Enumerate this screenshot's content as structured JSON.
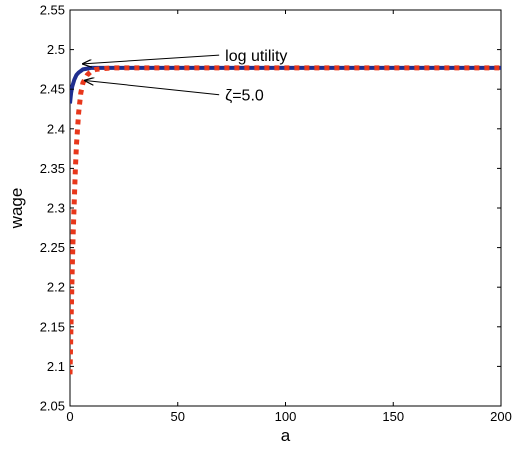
{
  "chart_data": {
    "type": "line",
    "xlabel": "a",
    "ylabel": "wage",
    "xlim": [
      0,
      200
    ],
    "ylim": [
      2.05,
      2.55
    ],
    "xticks": [
      "0",
      "50",
      "100",
      "150",
      "200"
    ],
    "yticks": [
      "2.05",
      "2.1",
      "2.15",
      "2.2",
      "2.25",
      "2.3",
      "2.35",
      "2.4",
      "2.45",
      "2.5",
      "2.55"
    ],
    "grid": false,
    "series": [
      {
        "color": "#1f2e8f",
        "style": "solid",
        "x": [
          0,
          0.5,
          1,
          2,
          3,
          4,
          5,
          6,
          8,
          10,
          15,
          20,
          50,
          100,
          150,
          200
        ],
        "y": [
          2.432,
          2.445,
          2.453,
          2.462,
          2.468,
          2.471,
          2.473,
          2.475,
          2.476,
          2.477,
          2.477,
          2.477,
          2.477,
          2.477,
          2.477,
          2.477
        ]
      },
      {
        "color": "#e8371b",
        "style": "dotted",
        "x": [
          0,
          0.3,
          0.6,
          1,
          1.5,
          2,
          2.5,
          3,
          4,
          5,
          6,
          8,
          10,
          12,
          15,
          20,
          30,
          50,
          100,
          150,
          200
        ],
        "y": [
          2.09,
          2.13,
          2.17,
          2.22,
          2.27,
          2.31,
          2.35,
          2.38,
          2.42,
          2.445,
          2.458,
          2.468,
          2.473,
          2.475,
          2.476,
          2.477,
          2.477,
          2.477,
          2.477,
          2.477,
          2.477
        ]
      }
    ],
    "annotations": [
      {
        "text": "log utility",
        "target_x": 6,
        "target_y": 2.482,
        "text_x": 72,
        "text_y": 2.493
      },
      {
        "text": "ζ=5.0",
        "target_x": 7,
        "target_y": 2.461,
        "text_x": 72,
        "text_y": 2.443
      }
    ]
  }
}
